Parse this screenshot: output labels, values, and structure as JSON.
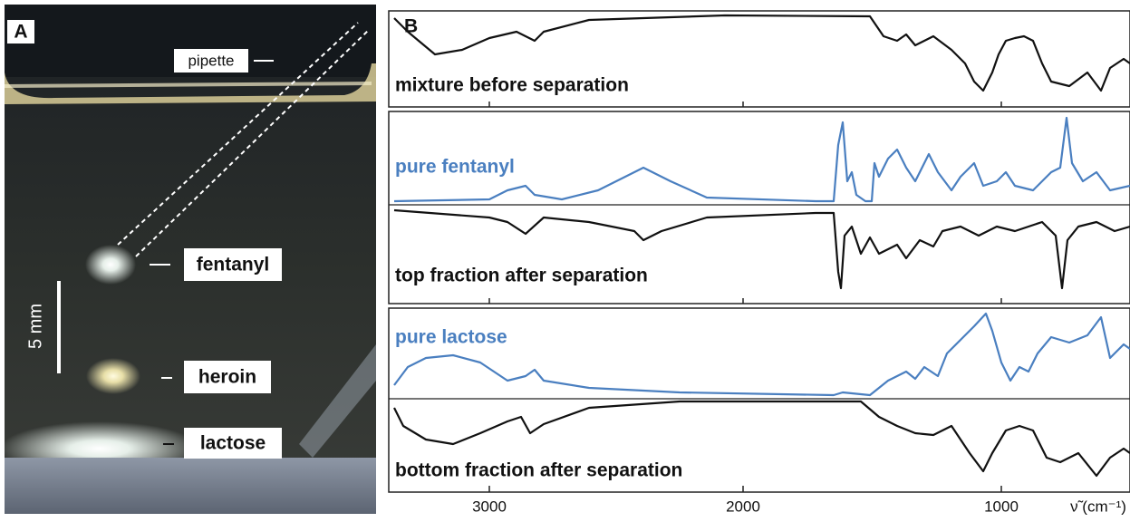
{
  "panel_a": {
    "letter": "A",
    "labels": [
      "pipette",
      "fentanyl",
      "heroin",
      "lactose"
    ],
    "scale_bar": "5 mm"
  },
  "panel_b": {
    "letter": "B",
    "traces": [
      "mixture before separation",
      "pure fentanyl",
      "top fraction after separation",
      "pure lactose",
      "bottom fraction after separation"
    ],
    "x_ticks": [
      "3000",
      "2000",
      "1000"
    ],
    "x_label": "ν̃ (cm⁻¹)"
  }
}
